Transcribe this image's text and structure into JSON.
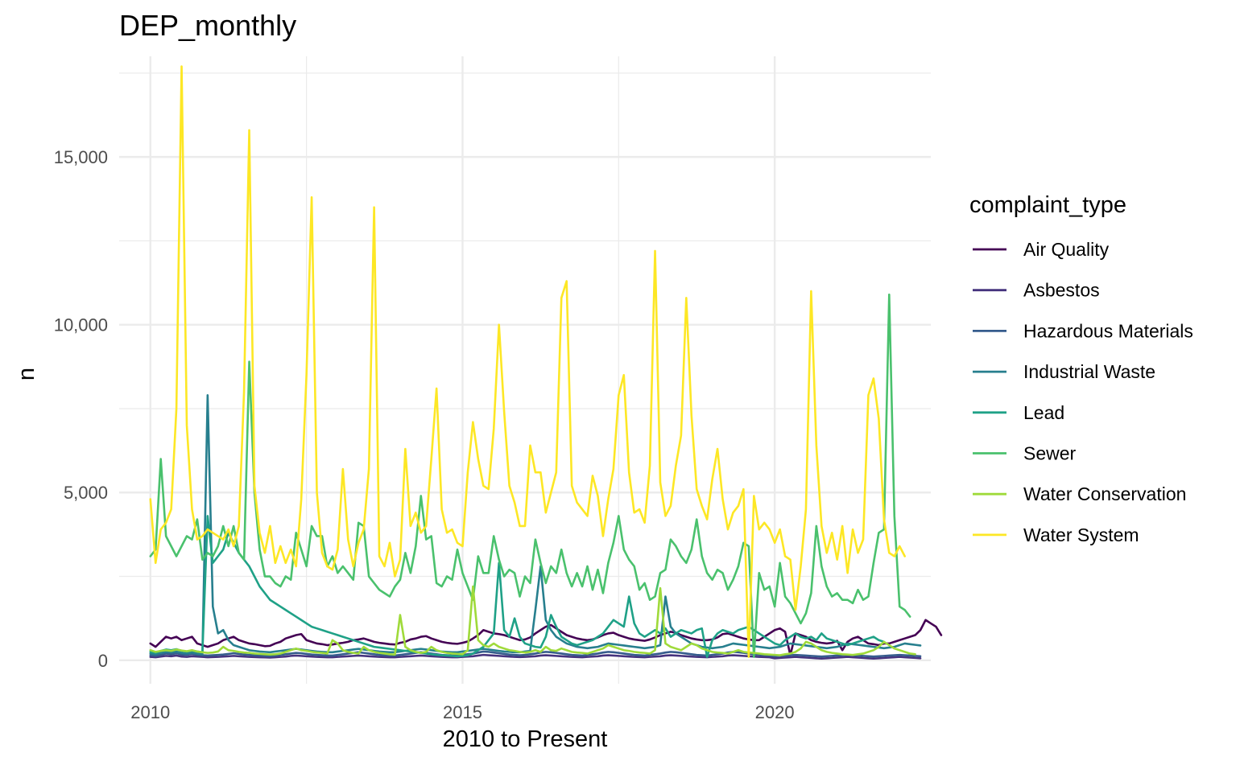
{
  "chart_data": {
    "type": "line",
    "title": "DEP_monthly",
    "xlabel": "2010 to Present",
    "ylabel": "n",
    "xlim": [
      2009.5,
      2022.5
    ],
    "ylim": [
      -700,
      18000
    ],
    "x_ticks": [
      {
        "value": 2010,
        "label": "2010"
      },
      {
        "value": 2015,
        "label": "2015"
      },
      {
        "value": 2020,
        "label": "2020"
      }
    ],
    "y_ticks": [
      {
        "value": 0,
        "label": "0"
      },
      {
        "value": 5000,
        "label": "5,000"
      },
      {
        "value": 10000,
        "label": "10,000"
      },
      {
        "value": 15000,
        "label": "15,000"
      }
    ],
    "grid": true,
    "legend": {
      "title": "complaint_type",
      "position": "right"
    },
    "x_start": "2010-01",
    "x_step": "month",
    "series": [
      {
        "name": "Air Quality",
        "color": "#440154",
        "values": [
          500,
          400,
          550,
          700,
          650,
          700,
          600,
          650,
          700,
          500,
          450,
          400,
          450,
          500,
          600,
          650,
          700,
          600,
          550,
          500,
          480,
          450,
          420,
          430,
          500,
          550,
          650,
          700,
          750,
          780,
          600,
          550,
          500,
          480,
          450,
          470,
          500,
          520,
          550,
          600,
          620,
          650,
          600,
          550,
          520,
          500,
          480,
          470,
          520,
          550,
          620,
          650,
          700,
          720,
          650,
          600,
          550,
          520,
          500,
          490,
          520,
          560,
          650,
          750,
          900,
          850,
          800,
          780,
          750,
          700,
          650,
          600,
          620,
          680,
          800,
          900,
          1000,
          1050,
          950,
          850,
          750,
          700,
          650,
          620,
          600,
          620,
          680,
          750,
          800,
          820,
          750,
          700,
          650,
          620,
          600,
          580,
          620,
          680,
          750,
          800,
          850,
          820,
          750,
          700,
          650,
          620,
          600,
          600,
          620,
          680,
          780,
          800,
          750,
          700,
          650,
          620,
          600,
          600,
          700,
          800,
          900,
          950,
          850,
          150,
          800,
          750,
          700,
          600,
          550,
          520,
          500,
          520,
          580,
          300,
          550,
          650,
          700,
          600,
          500,
          480,
          450,
          500,
          500,
          550,
          600,
          650,
          700,
          750,
          900,
          1200,
          1100,
          1000,
          750
        ]
      },
      {
        "name": "Asbestos",
        "color": "#46337E",
        "values": [
          100,
          90,
          110,
          130,
          120,
          140,
          110,
          100,
          120,
          110,
          100,
          90,
          95,
          100,
          110,
          120,
          130,
          120,
          110,
          100,
          95,
          90,
          85,
          80,
          90,
          100,
          110,
          130,
          140,
          130,
          120,
          110,
          100,
          95,
          90,
          90,
          100,
          110,
          120,
          130,
          140,
          130,
          120,
          110,
          100,
          95,
          90,
          90,
          100,
          110,
          120,
          130,
          140,
          130,
          120,
          110,
          100,
          95,
          90,
          90,
          100,
          110,
          120,
          140,
          160,
          150,
          140,
          130,
          120,
          110,
          100,
          95,
          100,
          110,
          120,
          140,
          150,
          140,
          130,
          120,
          110,
          100,
          95,
          90,
          100,
          110,
          120,
          140,
          150,
          140,
          130,
          120,
          110,
          100,
          95,
          90,
          100,
          110,
          120,
          140,
          150,
          140,
          130,
          120,
          110,
          100,
          95,
          90,
          100,
          110,
          120,
          140,
          150,
          140,
          130,
          120,
          110,
          100,
          95,
          90,
          60,
          70,
          80,
          90,
          100,
          90,
          80,
          70,
          60,
          50,
          60,
          70,
          80,
          90,
          100,
          90,
          80,
          70,
          60,
          50,
          60,
          70,
          80,
          90,
          100,
          90,
          80,
          70,
          60
        ]
      },
      {
        "name": "Hazardous Materials",
        "color": "#365C8D",
        "values": [
          150,
          130,
          160,
          200,
          180,
          210,
          170,
          160,
          190,
          160,
          150,
          140,
          150,
          160,
          170,
          190,
          210,
          190,
          170,
          160,
          150,
          140,
          130,
          120,
          140,
          160,
          180,
          200,
          220,
          210,
          190,
          170,
          160,
          150,
          140,
          140,
          160,
          180,
          200,
          220,
          240,
          220,
          200,
          180,
          160,
          150,
          140,
          140,
          160,
          180,
          200,
          220,
          240,
          220,
          200,
          180,
          160,
          150,
          140,
          140,
          160,
          180,
          200,
          230,
          260,
          250,
          230,
          210,
          190,
          170,
          160,
          150,
          160,
          180,
          200,
          230,
          250,
          240,
          220,
          200,
          180,
          160,
          150,
          140,
          160,
          180,
          200,
          230,
          250,
          240,
          220,
          200,
          180,
          160,
          150,
          140,
          160,
          180,
          200,
          230,
          250,
          240,
          220,
          200,
          180,
          160,
          150,
          140,
          160,
          180,
          200,
          230,
          250,
          240,
          220,
          200,
          180,
          160,
          150,
          140,
          120,
          130,
          140,
          150,
          160,
          150,
          140,
          130,
          120,
          110,
          120,
          130,
          140,
          150,
          160,
          150,
          140,
          130,
          120,
          110,
          120,
          130,
          140,
          150,
          160,
          150,
          140,
          130,
          120
        ]
      },
      {
        "name": "Industrial Waste",
        "color": "#277F8E",
        "values": [
          200,
          180,
          220,
          250,
          240,
          260,
          220,
          200,
          230,
          200,
          180,
          7900,
          1600,
          800,
          900,
          600,
          450,
          400,
          350,
          300,
          280,
          260,
          250,
          240,
          260,
          280,
          300,
          320,
          340,
          320,
          300,
          280,
          260,
          250,
          240,
          240,
          260,
          280,
          300,
          320,
          340,
          320,
          300,
          280,
          260,
          250,
          240,
          240,
          260,
          280,
          300,
          320,
          340,
          320,
          300,
          280,
          260,
          250,
          240,
          240,
          260,
          280,
          300,
          320,
          340,
          320,
          300,
          280,
          260,
          250,
          240,
          240,
          260,
          280,
          1500,
          2800,
          1200,
          900,
          700,
          600,
          500,
          450,
          400,
          380,
          360,
          380,
          400,
          450,
          500,
          480,
          460,
          440,
          420,
          400,
          380,
          360,
          380,
          400,
          450,
          1900,
          1000,
          800,
          700,
          600,
          500,
          450,
          400,
          380,
          360,
          380,
          400,
          450,
          500,
          480,
          460,
          440,
          420,
          400,
          380,
          360,
          380,
          400,
          450,
          500,
          480,
          460,
          440,
          420,
          400,
          380,
          360,
          380,
          400,
          450,
          500,
          480,
          460,
          440,
          420,
          400,
          380,
          360,
          380,
          400,
          450,
          500,
          480,
          460,
          440
        ]
      },
      {
        "name": "Lead",
        "color": "#1FA187",
        "values": [
          250,
          220,
          280,
          320,
          300,
          330,
          280,
          260,
          290,
          260,
          240,
          4300,
          2900,
          3100,
          3300,
          3800,
          3500,
          3200,
          3000,
          2800,
          2500,
          2200,
          2000,
          1800,
          1700,
          1600,
          1500,
          1400,
          1300,
          1200,
          1100,
          1000,
          950,
          900,
          850,
          800,
          750,
          700,
          650,
          600,
          550,
          500,
          450,
          400,
          380,
          360,
          340,
          320,
          300,
          280,
          260,
          240,
          220,
          200,
          180,
          160,
          150,
          140,
          130,
          120,
          130,
          150,
          200,
          300,
          400,
          600,
          800,
          2900,
          900,
          700,
          1250,
          700,
          500,
          450,
          400,
          380,
          700,
          1350,
          1000,
          700,
          600,
          500,
          450,
          500,
          550,
          600,
          700,
          800,
          1000,
          1200,
          1100,
          1000,
          1900,
          1100,
          800,
          700,
          800,
          900,
          800,
          950,
          700,
          800,
          900,
          850,
          800,
          900,
          950,
          100,
          600,
          800,
          900,
          850,
          800,
          900,
          950,
          1000,
          900,
          800,
          700,
          600,
          500,
          450,
          600,
          700,
          800,
          700,
          650,
          700,
          600,
          800,
          650,
          600,
          550,
          500,
          450,
          500,
          550,
          600,
          650,
          700,
          600,
          550
        ]
      },
      {
        "name": "Sewer",
        "color": "#4AC16D",
        "values": [
          3100,
          3300,
          6000,
          3700,
          3400,
          3100,
          3400,
          3700,
          3600,
          4200,
          3000,
          3200,
          3100,
          3400,
          4000,
          3400,
          4000,
          3200,
          3000,
          8900,
          5000,
          3300,
          2500,
          2500,
          2300,
          2200,
          2500,
          2400,
          3800,
          3300,
          2800,
          4000,
          3700,
          3700,
          2800,
          3100,
          2600,
          2800,
          2600,
          2400,
          4100,
          4000,
          2500,
          2300,
          2100,
          2000,
          1900,
          2200,
          2400,
          3200,
          2600,
          3400,
          4900,
          3600,
          3700,
          2300,
          2200,
          2500,
          2400,
          3300,
          2600,
          2200,
          1800,
          3100,
          2600,
          2600,
          3700,
          3000,
          2500,
          2700,
          2600,
          1900,
          2500,
          2300,
          3600,
          2900,
          2300,
          2800,
          2600,
          3300,
          2600,
          2200,
          2600,
          2200,
          2800,
          2100,
          2700,
          2000,
          2900,
          3500,
          4300,
          3300,
          3000,
          2800,
          2100,
          2300,
          1800,
          1900,
          2600,
          2700,
          3600,
          3400,
          3100,
          2900,
          3300,
          4200,
          3100,
          2600,
          2400,
          2700,
          2600,
          2100,
          2400,
          2800,
          3500,
          3400,
          100,
          2600,
          2100,
          2200,
          1600,
          2900,
          1900,
          1700,
          1400,
          1100,
          1400,
          2000,
          4000,
          2800,
          2200,
          1900,
          2000,
          1800,
          1800,
          1700,
          2100,
          1800,
          1900,
          2900,
          3800,
          3900,
          10900,
          4300,
          1600,
          1500,
          1300
        ]
      },
      {
        "name": "Water Conservation",
        "color": "#9FDA3A",
        "values": [
          300,
          250,
          280,
          300,
          280,
          320,
          290,
          270,
          300,
          260,
          240,
          220,
          230,
          260,
          400,
          300,
          280,
          250,
          230,
          220,
          200,
          190,
          180,
          170,
          180,
          200,
          250,
          300,
          350,
          300,
          280,
          250,
          230,
          220,
          200,
          600,
          500,
          300,
          250,
          220,
          200,
          400,
          300,
          250,
          220,
          200,
          180,
          170,
          1350,
          400,
          300,
          250,
          220,
          250,
          400,
          300,
          250,
          220,
          200,
          190,
          180,
          300,
          2200,
          600,
          450,
          400,
          500,
          400,
          350,
          300,
          280,
          250,
          230,
          250,
          300,
          250,
          400,
          300,
          280,
          350,
          300,
          250,
          230,
          220,
          200,
          250,
          300,
          350,
          450,
          400,
          350,
          300,
          280,
          250,
          230,
          220,
          200,
          300,
          2150,
          500,
          400,
          350,
          300,
          400,
          500,
          450,
          350,
          300,
          250,
          230,
          220,
          200,
          250,
          300,
          250,
          230,
          220,
          200,
          180,
          170,
          160,
          150,
          180,
          200,
          250,
          350,
          550,
          500,
          400,
          300,
          250,
          220,
          200,
          180,
          170,
          160,
          180,
          200,
          250,
          300,
          400,
          550,
          450,
          350,
          300,
          250,
          200,
          180
        ]
      },
      {
        "name": "Water System",
        "color": "#FDE725",
        "values": [
          4800,
          2900,
          3900,
          4100,
          4500,
          7500,
          17700,
          7000,
          4500,
          3600,
          3700,
          3900,
          3800,
          3700,
          3600,
          3900,
          3400,
          4000,
          8000,
          15800,
          5200,
          3800,
          3200,
          4000,
          2900,
          3400,
          2900,
          3300,
          2800,
          4800,
          8500,
          13800,
          5000,
          3200,
          2800,
          2700,
          3300,
          5700,
          3600,
          2800,
          3500,
          3900,
          5700,
          13500,
          3100,
          2800,
          3500,
          2500,
          3000,
          6300,
          4000,
          4400,
          3800,
          4000,
          6000,
          8100,
          4500,
          3800,
          3900,
          3500,
          3400,
          5600,
          7100,
          6000,
          5200,
          5100,
          6900,
          10000,
          7400,
          5200,
          4700,
          4000,
          4000,
          6400,
          5600,
          5600,
          4400,
          5000,
          5600,
          10800,
          11300,
          5200,
          4700,
          4500,
          4300,
          5500,
          4900,
          3700,
          4800,
          5700,
          7900,
          8500,
          5600,
          4400,
          4500,
          4100,
          5800,
          12200,
          5300,
          4300,
          4600,
          5800,
          6700,
          10800,
          7300,
          5100,
          4600,
          4200,
          5400,
          6300,
          4800,
          3900,
          4400,
          4600,
          5100,
          100,
          4900,
          3900,
          4100,
          3900,
          3500,
          3900,
          3100,
          3000,
          1500,
          2800,
          4500,
          11000,
          6400,
          4000,
          3200,
          3800,
          3000,
          4000,
          2600,
          3900,
          3200,
          3600,
          7900,
          8400,
          7200,
          4200,
          3200,
          3100,
          3400,
          3100
        ]
      }
    ]
  }
}
